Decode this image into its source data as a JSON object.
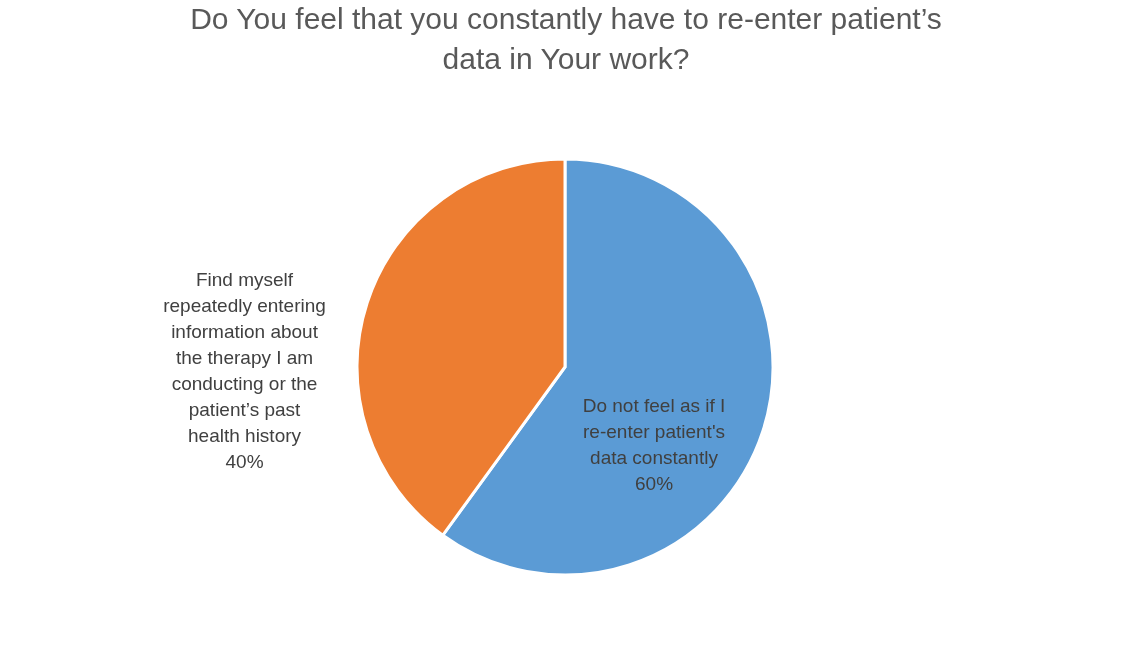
{
  "chart_data": {
    "type": "pie",
    "title": "Do You feel that you constantly have to re-enter patient’s data in Your work?",
    "categories": [
      "Do not feel as if I re-enter patient's data constantly",
      "Find myself repeatedly entering information about the therapy I am conducting or the patient’s past health history"
    ],
    "values": [
      60,
      40
    ],
    "colors": [
      "#5b9bd5",
      "#ed7d31"
    ],
    "value_labels": [
      "60%",
      "40%"
    ]
  }
}
